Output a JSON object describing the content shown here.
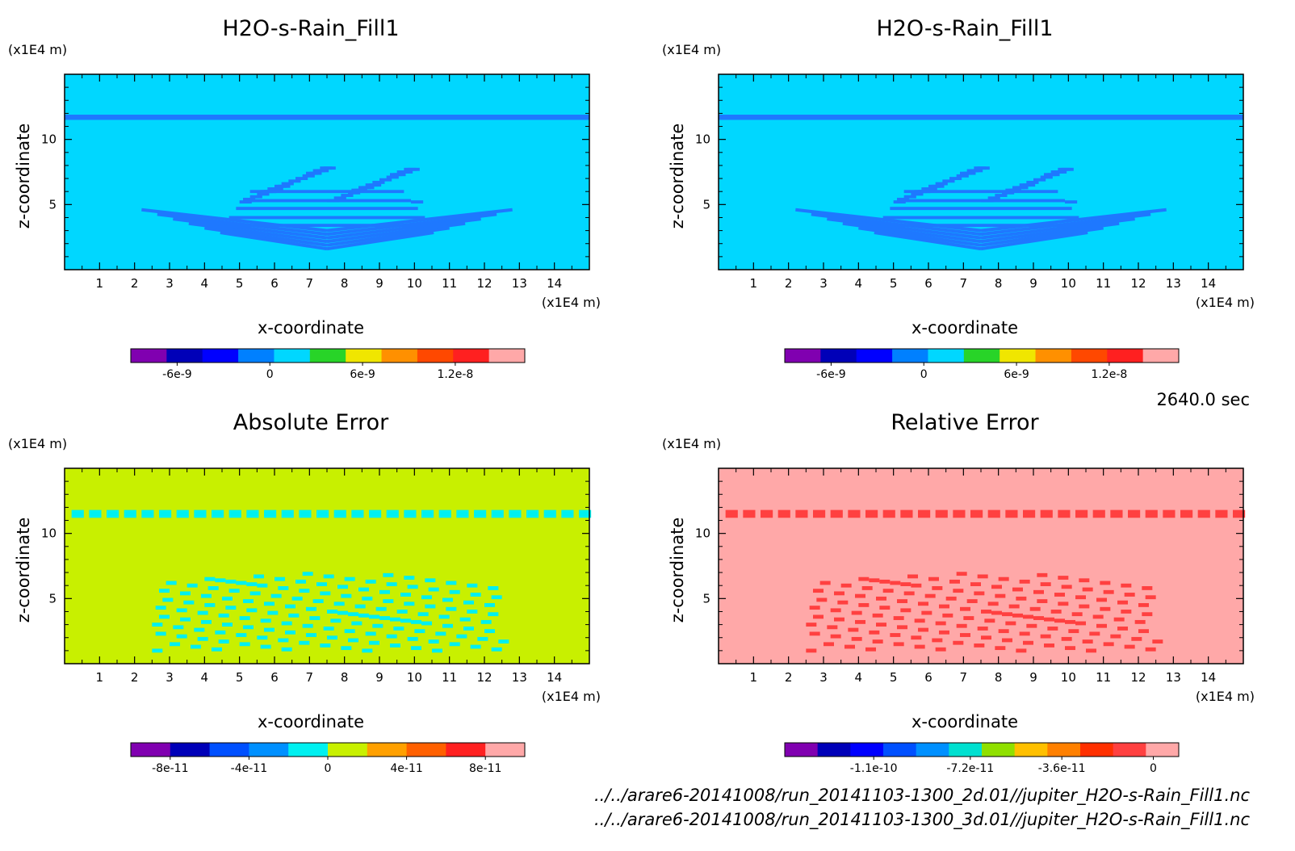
{
  "time_label": "2640.0 sec",
  "file_paths": [
    "../../arare6-20141008/run_20141103-1300_2d.01//jupiter_H2O-s-Rain_Fill1.nc",
    "../../arare6-20141008/run_20141103-1300_3d.01//jupiter_H2O-s-Rain_Fill1.nc"
  ],
  "chart_data": [
    {
      "type": "heatmap",
      "title": "H2O-s-Rain_Fill1",
      "xlabel": "x-coordinate",
      "ylabel": "z-coordinate",
      "x_unit": "(x1E4 m)",
      "y_unit": "(x1E4 m)",
      "xlim": [
        0,
        15
      ],
      "ylim": [
        0,
        15
      ],
      "x_ticks": [
        1,
        2,
        3,
        4,
        5,
        6,
        7,
        8,
        9,
        10,
        11,
        12,
        13,
        14
      ],
      "y_ticks": [
        5,
        10
      ],
      "background_color": "#00d7ff",
      "feature_color": "#1e78ff",
      "colorbar": {
        "colors": [
          "#8000b0",
          "#0000b8",
          "#0000ff",
          "#0080ff",
          "#00d7ff",
          "#28d428",
          "#f0e600",
          "#ff9000",
          "#ff4800",
          "#ff2020",
          "#ffa8a8"
        ],
        "tick_labels": [
          "-6e-9",
          "0",
          "6e-9",
          "1.2e-8"
        ],
        "tick_values": [
          -6e-09,
          0,
          6e-09,
          1.2e-08
        ],
        "range": [
          -9e-09,
          1.65e-08
        ]
      }
    },
    {
      "type": "heatmap",
      "title": "H2O-s-Rain_Fill1",
      "xlabel": "x-coordinate",
      "ylabel": "z-coordinate",
      "x_unit": "(x1E4 m)",
      "y_unit": "(x1E4 m)",
      "xlim": [
        0,
        15
      ],
      "ylim": [
        0,
        15
      ],
      "x_ticks": [
        1,
        2,
        3,
        4,
        5,
        6,
        7,
        8,
        9,
        10,
        11,
        12,
        13,
        14
      ],
      "y_ticks": [
        5,
        10
      ],
      "background_color": "#00d7ff",
      "feature_color": "#1e78ff",
      "colorbar": {
        "colors": [
          "#8000b0",
          "#0000b8",
          "#0000ff",
          "#0080ff",
          "#00d7ff",
          "#28d428",
          "#f0e600",
          "#ff9000",
          "#ff4800",
          "#ff2020",
          "#ffa8a8"
        ],
        "tick_labels": [
          "-6e-9",
          "0",
          "6e-9",
          "1.2e-8"
        ],
        "tick_values": [
          -6e-09,
          0,
          6e-09,
          1.2e-08
        ],
        "range": [
          -9e-09,
          1.65e-08
        ]
      }
    },
    {
      "type": "heatmap",
      "title": "Absolute Error",
      "xlabel": "x-coordinate",
      "ylabel": "z-coordinate",
      "x_unit": "(x1E4 m)",
      "y_unit": "(x1E4 m)",
      "xlim": [
        0,
        15
      ],
      "ylim": [
        0,
        15
      ],
      "x_ticks": [
        1,
        2,
        3,
        4,
        5,
        6,
        7,
        8,
        9,
        10,
        11,
        12,
        13,
        14
      ],
      "y_ticks": [
        5,
        10
      ],
      "background_color": "#c8f000",
      "feature_color": "#00f0f0",
      "colorbar": {
        "colors": [
          "#8000b0",
          "#0000b8",
          "#0050ff",
          "#0090ff",
          "#00f0f0",
          "#c8f000",
          "#ffa000",
          "#ff6000",
          "#ff2020",
          "#ffa8a8"
        ],
        "tick_labels": [
          "-8e-11",
          "-4e-11",
          "0",
          "4e-11",
          "8e-11"
        ],
        "tick_values": [
          -8e-11,
          -4e-11,
          0,
          4e-11,
          8e-11
        ],
        "range": [
          -1e-10,
          1e-10
        ]
      }
    },
    {
      "type": "heatmap",
      "title": "Relative Error",
      "xlabel": "x-coordinate",
      "ylabel": "z-coordinate",
      "x_unit": "(x1E4 m)",
      "y_unit": "(x1E4 m)",
      "xlim": [
        0,
        15
      ],
      "ylim": [
        0,
        15
      ],
      "x_ticks": [
        1,
        2,
        3,
        4,
        5,
        6,
        7,
        8,
        9,
        10,
        11,
        12,
        13,
        14
      ],
      "y_ticks": [
        5,
        10
      ],
      "background_color": "#ffa8a8",
      "feature_color": "#ff4040",
      "colorbar": {
        "colors": [
          "#8000b0",
          "#0000b8",
          "#0000ff",
          "#0050ff",
          "#0090ff",
          "#00e0d0",
          "#90e000",
          "#ffc000",
          "#ff8000",
          "#ff3000",
          "#ff4040",
          "#ffa8a8"
        ],
        "tick_labels": [
          "-1.1e-10",
          "-7.2e-11",
          "-3.6e-11",
          "0"
        ],
        "tick_values": [
          -1.1e-10,
          -7.2e-11,
          -3.6e-11,
          0
        ],
        "range": [
          -1.45e-10,
          1e-11
        ]
      }
    }
  ]
}
